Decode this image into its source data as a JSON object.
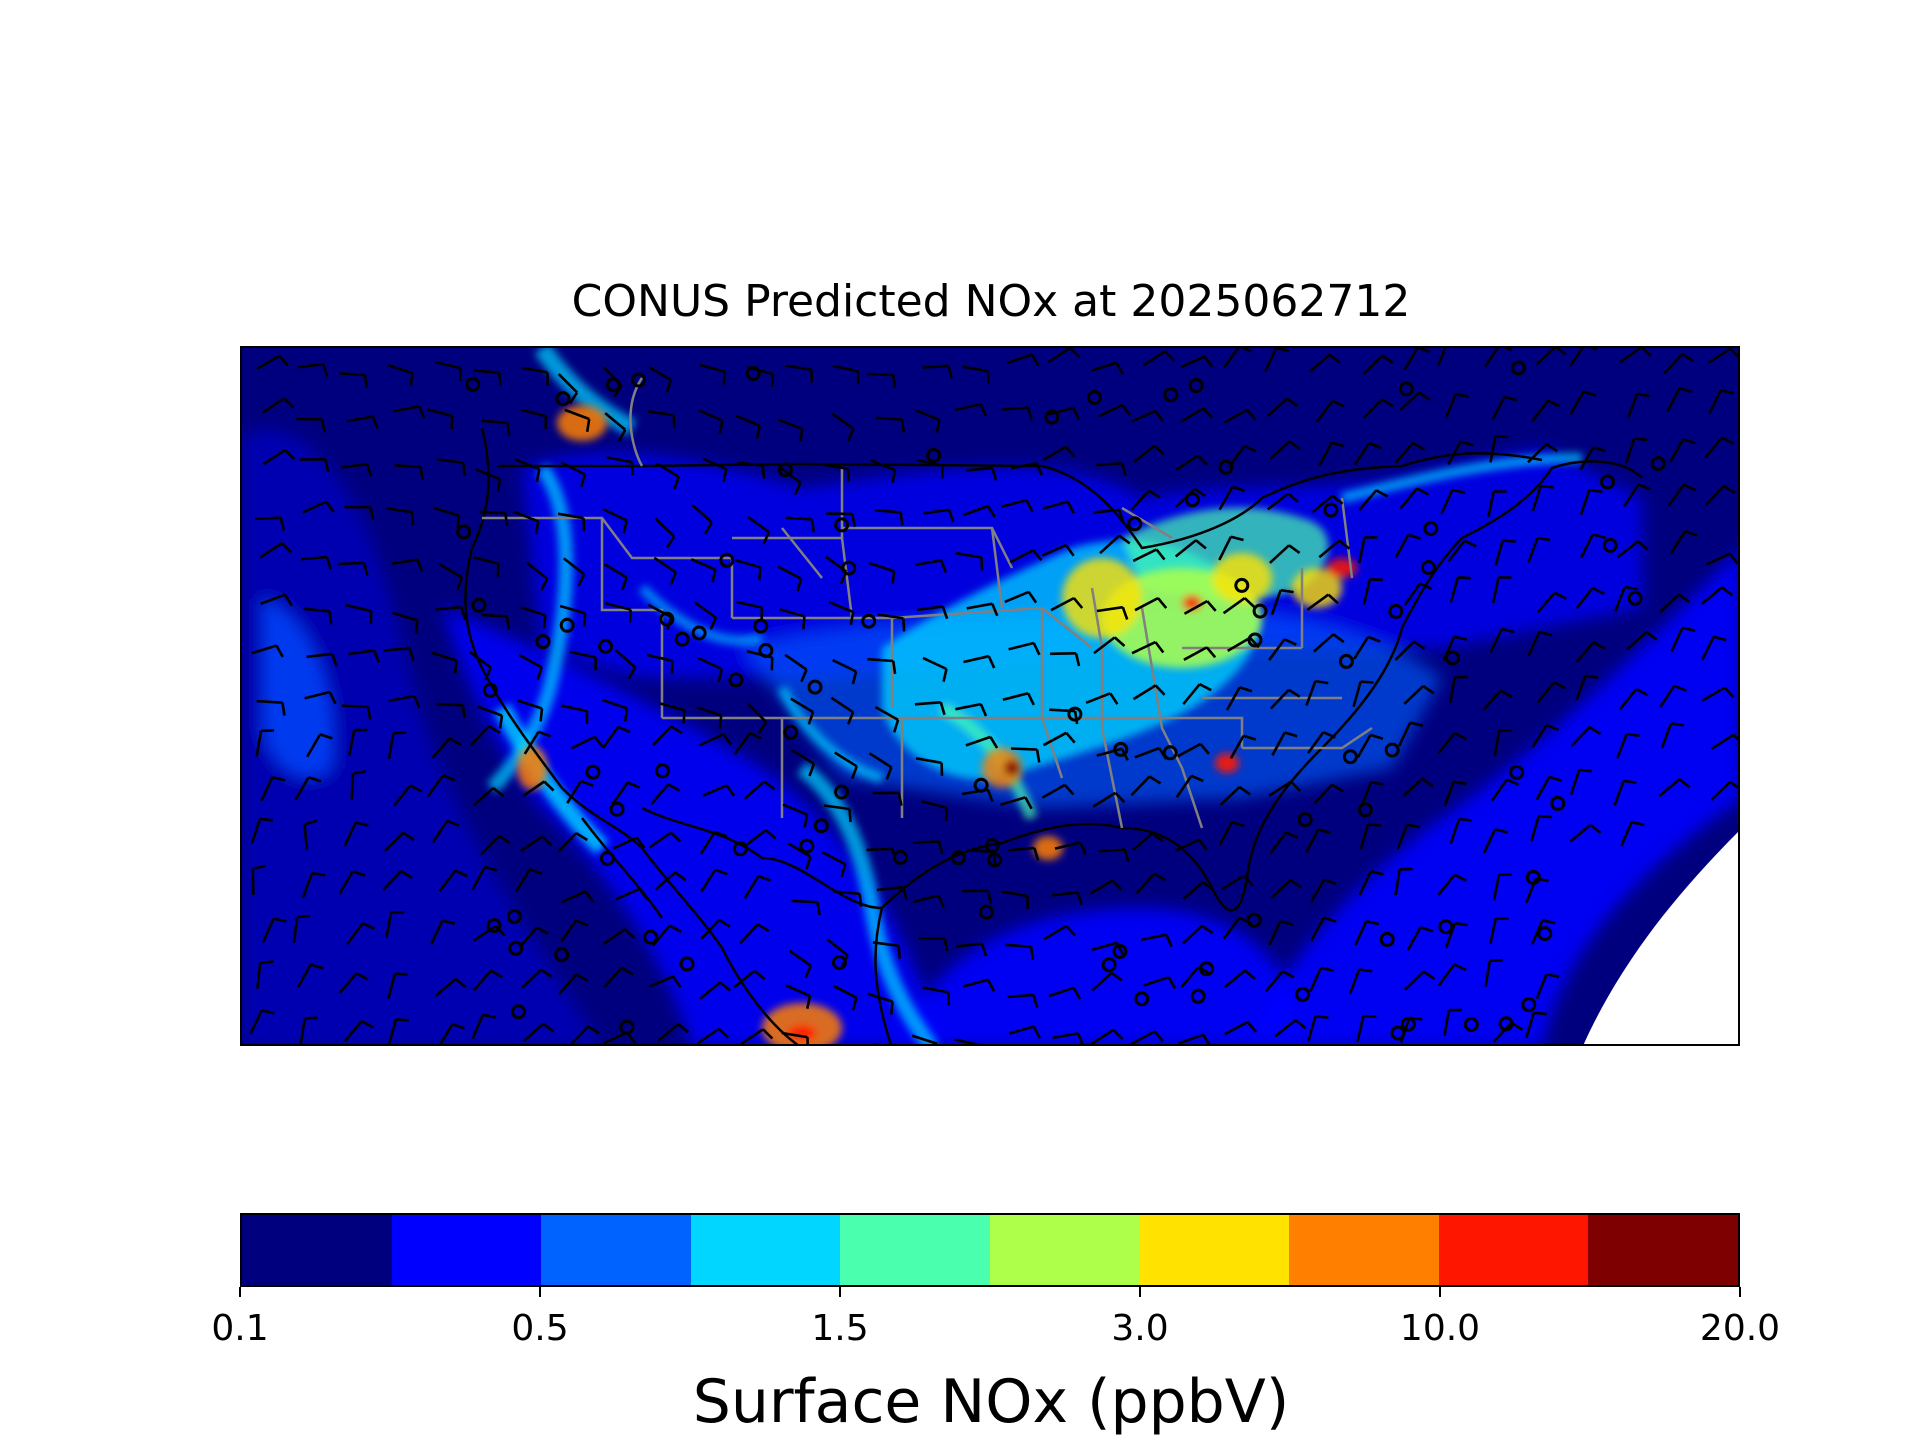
{
  "title": "CONUS Predicted NOx at 2025062712",
  "colorbar": {
    "label": "Surface NOx (ppbV)",
    "tick_labels": [
      "0.1",
      "0.5",
      "1.5",
      "3.0",
      "10.0",
      "20.0"
    ],
    "colors": [
      "#00007f",
      "#0000ff",
      "#0062ff",
      "#00d6ff",
      "#4affad",
      "#adff4a",
      "#ffe200",
      "#ff7f00",
      "#ff1600",
      "#7f0000"
    ]
  },
  "map": {
    "variable": "surface NOx",
    "units": "ppbV",
    "background_color": "#00007f",
    "overlays": [
      "wind-barbs",
      "station-markers",
      "state-borders",
      "coastlines",
      "country-borders"
    ],
    "no_data_color": "#ffffff"
  }
}
